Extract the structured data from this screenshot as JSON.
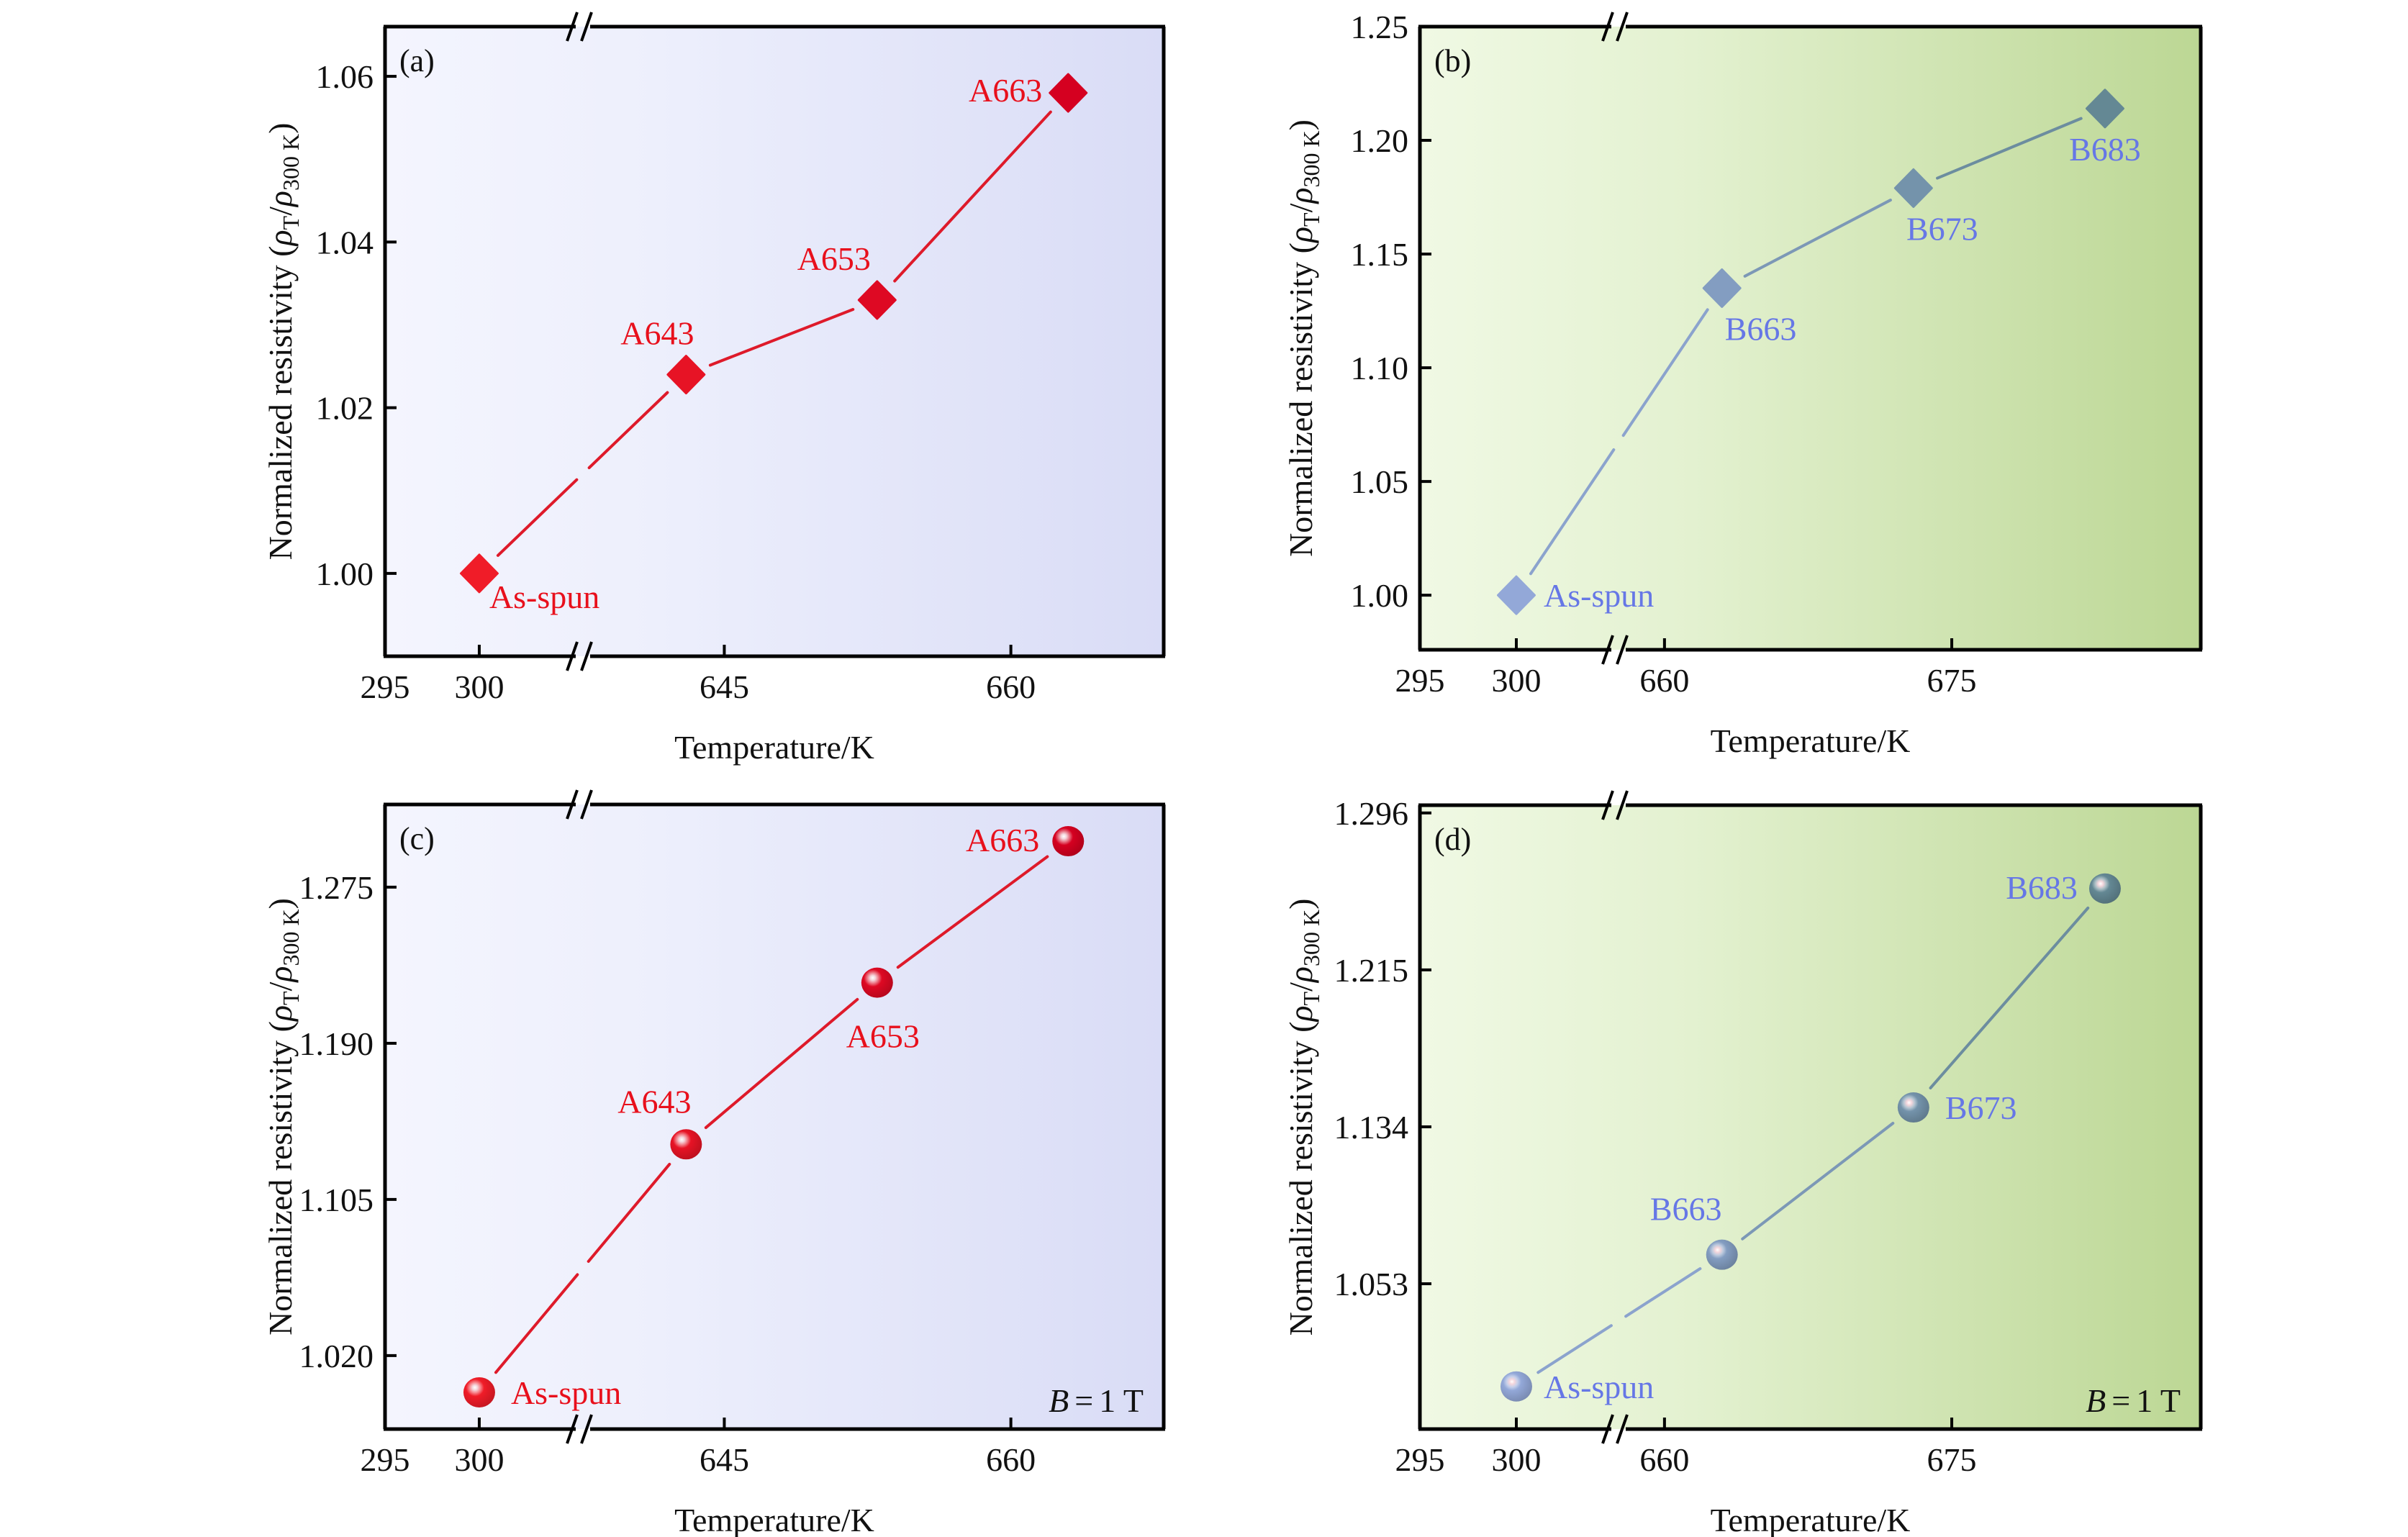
{
  "figure": {
    "x_axis_title": "Temperature/K",
    "y_axis_title_main": "Normalized resistivity",
    "y_axis_title_formula": {
      "rho": "ρ",
      "sub_num": "T",
      "slash": "/",
      "sub_den": "300 K"
    },
    "field_annotation": {
      "symbol": "B",
      "equals": "=",
      "value": "1 T"
    }
  },
  "colors": {
    "alloy_a_line": "#de1a2a",
    "alloy_a_marker_light": "#f01c28",
    "alloy_a_marker_dark": "#d50020",
    "alloy_a_label": "#e8101c",
    "alloy_b_marker_light": "#93a8d8",
    "alloy_b_marker_dark": "#648894",
    "alloy_b_label": "#6677e6",
    "panel_a_bg_left": "#f4f5fe",
    "panel_a_bg_right": "#d9dcf6",
    "panel_b_bg_left": "#f0f9e4",
    "panel_b_bg_right": "#bcd794"
  },
  "chart_data": [
    {
      "panel": "(a)",
      "type": "line",
      "marker": "diamond",
      "series_family": "A",
      "xlabel": "Temperature/K",
      "ylabel": "Normalized resistivity (ρT/ρ300 K)",
      "x_broken": true,
      "x_segments": [
        [
          295,
          305.5
        ],
        [
          637.6,
          668
        ]
      ],
      "x_ticks": [
        295,
        300,
        645,
        660
      ],
      "x_tick_labels": [
        "295",
        "300",
        "645",
        "660"
      ],
      "ylim": [
        0.99,
        1.066
      ],
      "y_ticks": [
        1.0,
        1.02,
        1.04,
        1.06
      ],
      "y_tick_labels": [
        "1.00",
        "1.02",
        "1.04",
        "1.06"
      ],
      "points": [
        {
          "label": "As-spun",
          "x": 300,
          "y": 1.0
        },
        {
          "label": "A643",
          "x": 643,
          "y": 1.024
        },
        {
          "label": "A653",
          "x": 653,
          "y": 1.033
        },
        {
          "label": "A663",
          "x": 663,
          "y": 1.058
        }
      ],
      "annotation": ""
    },
    {
      "panel": "(b)",
      "type": "line",
      "marker": "diamond",
      "series_family": "B",
      "xlabel": "Temperature/K",
      "ylabel": "Normalized resistivity (ρT/ρ300 K)",
      "x_broken": true,
      "x_segments": [
        [
          295,
          305.3
        ],
        [
          657.6,
          688
        ]
      ],
      "x_ticks": [
        295,
        300,
        660,
        675
      ],
      "x_tick_labels": [
        "295",
        "300",
        "660",
        "675"
      ],
      "ylim": [
        0.976,
        1.25
      ],
      "y_ticks": [
        1.0,
        1.05,
        1.1,
        1.15,
        1.2,
        1.25
      ],
      "y_tick_labels": [
        "1.00",
        "1.05",
        "1.10",
        "1.15",
        "1.20",
        "1.25"
      ],
      "points": [
        {
          "label": "As-spun",
          "x": 300,
          "y": 1.0
        },
        {
          "label": "B663",
          "x": 663,
          "y": 1.135
        },
        {
          "label": "B673",
          "x": 673,
          "y": 1.179
        },
        {
          "label": "B683",
          "x": 683,
          "y": 1.214
        }
      ],
      "annotation": ""
    },
    {
      "panel": "(c)",
      "type": "line",
      "marker": "sphere",
      "series_family": "A",
      "xlabel": "Temperature/K",
      "ylabel": "Normalized resistivity (ρT/ρ300 K)",
      "x_broken": true,
      "x_segments": [
        [
          295,
          305.5
        ],
        [
          637.6,
          668
        ]
      ],
      "x_ticks": [
        295,
        300,
        645,
        660
      ],
      "x_tick_labels": [
        "295",
        "300",
        "645",
        "660"
      ],
      "ylim": [
        0.98,
        1.32
      ],
      "y_ticks": [
        1.02,
        1.105,
        1.19,
        1.275
      ],
      "y_tick_labels": [
        "1.020",
        "1.105",
        "1.190",
        "1.275"
      ],
      "points": [
        {
          "label": "As-spun",
          "x": 300,
          "y": 1.0
        },
        {
          "label": "A643",
          "x": 643,
          "y": 1.135
        },
        {
          "label": "A653",
          "x": 653,
          "y": 1.223
        },
        {
          "label": "A663",
          "x": 663,
          "y": 1.3
        }
      ],
      "annotation": "B = 1 T"
    },
    {
      "panel": "(d)",
      "type": "line",
      "marker": "sphere",
      "series_family": "B",
      "xlabel": "Temperature/K",
      "ylabel": "Normalized resistivity (ρT/ρ300 K)",
      "x_broken": true,
      "x_segments": [
        [
          295,
          305.3
        ],
        [
          657.6,
          688
        ]
      ],
      "x_ticks": [
        295,
        300,
        660,
        675
      ],
      "x_tick_labels": [
        "295",
        "300",
        "660",
        "675"
      ],
      "ylim": [
        0.978,
        1.3
      ],
      "y_ticks": [
        1.053,
        1.134,
        1.215,
        1.296
      ],
      "y_tick_labels": [
        "1.053",
        "1.134",
        "1.215",
        "1.296"
      ],
      "points": [
        {
          "label": "As-spun",
          "x": 300,
          "y": 1.0
        },
        {
          "label": "B663",
          "x": 663,
          "y": 1.068
        },
        {
          "label": "B673",
          "x": 673,
          "y": 1.144
        },
        {
          "label": "B683",
          "x": 683,
          "y": 1.257
        }
      ],
      "annotation": "B = 1 T"
    }
  ]
}
